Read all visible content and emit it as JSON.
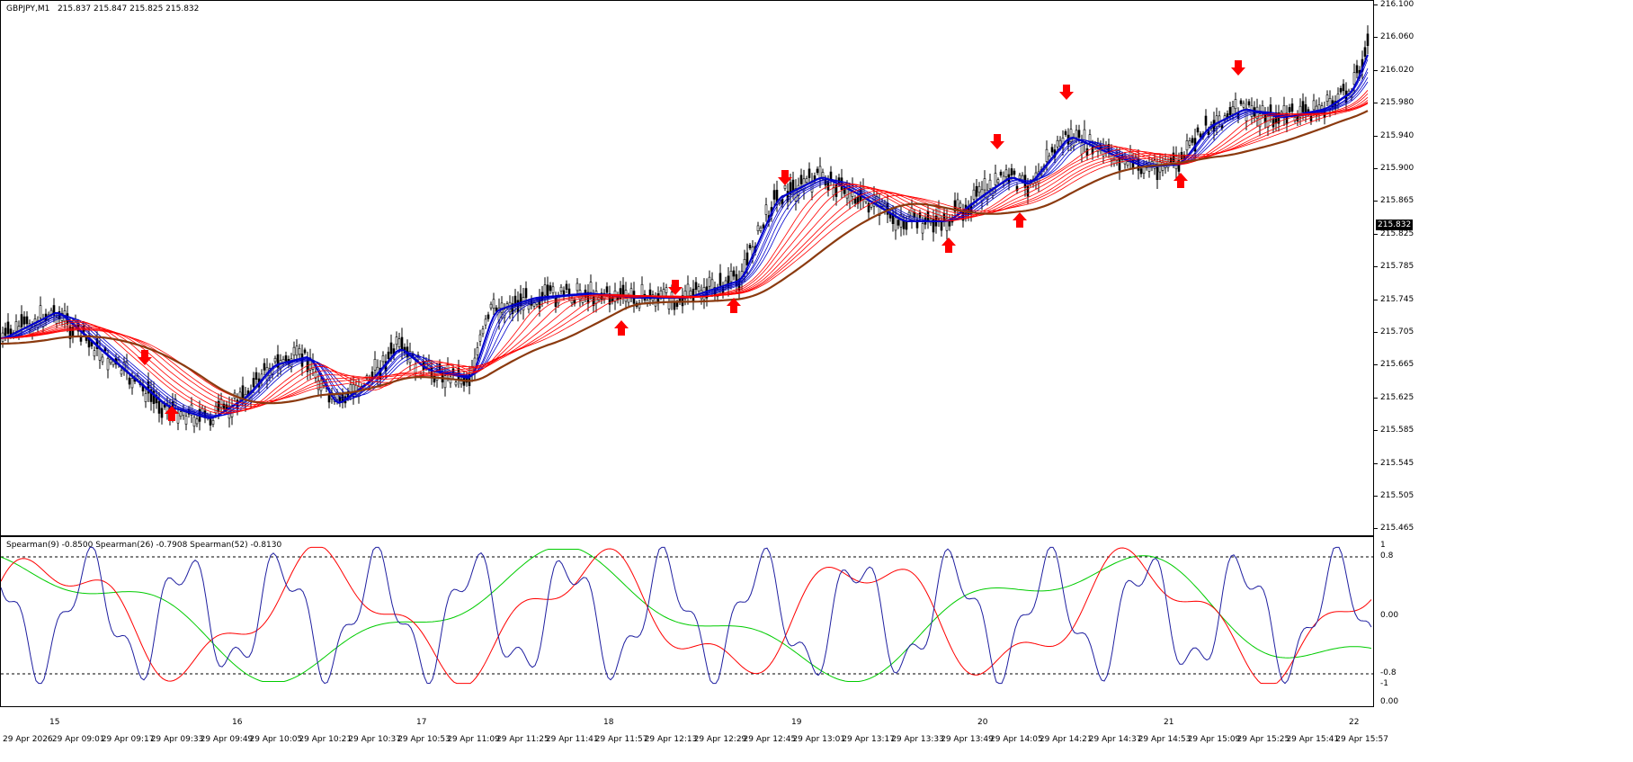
{
  "main_chart": {
    "symbol_title": "GBPJPY,M1",
    "ohlc_text": "215.837 215.847 215.825 215.832",
    "price_axis": [
      "216.100",
      "216.060",
      "216.020",
      "215.980",
      "215.940",
      "215.900",
      "215.865",
      "215.825",
      "215.785",
      "215.745",
      "215.705",
      "215.665",
      "215.625",
      "215.585",
      "215.545",
      "215.505",
      "215.465"
    ],
    "current_price": "215.832"
  },
  "oscillator": {
    "legend": "Spearman(9) -0.8500  Spearman(26) -0.7908  Spearman(52) -0.8130",
    "axis": [
      "1",
      "0.8",
      "0.00",
      "-0.8",
      "-1",
      "0.00"
    ]
  },
  "time_axis": {
    "day_labels": [
      "15",
      "16",
      "17",
      "18",
      "19",
      "20",
      "21",
      "22"
    ],
    "time_labels": [
      "29 Apr 2026",
      "29 Apr 09:01",
      "29 Apr 09:17",
      "29 Apr 09:33",
      "29 Apr 09:49",
      "29 Apr 10:05",
      "29 Apr 10:21",
      "29 Apr 10:37",
      "29 Apr 10:53",
      "29 Apr 11:09",
      "29 Apr 11:25",
      "29 Apr 11:41",
      "29 Apr 11:57",
      "29 Apr 12:13",
      "29 Apr 12:29",
      "29 Apr 12:45",
      "29 Apr 13:01",
      "29 Apr 13:17",
      "29 Apr 13:33",
      "29 Apr 13:49",
      "29 Apr 14:05",
      "29 Apr 14:21",
      "29 Apr 14:37",
      "29 Apr 14:53",
      "29 Apr 15:09",
      "29 Apr 15:25",
      "29 Apr 15:41",
      "29 Apr 15:57"
    ]
  },
  "colors": {
    "blue": "#0000cc",
    "red": "#ff0000",
    "brown": "#8b3a0f",
    "green": "#00cc00",
    "arrow": "#ff0000"
  }
}
